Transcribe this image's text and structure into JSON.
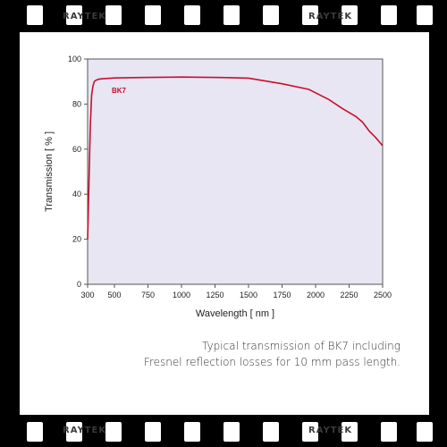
{
  "watermark": {
    "top_left": "RAYTEK",
    "top_right": "RAYTEK",
    "bottom_left": "RAYTEK",
    "bottom_right": "RAYTEK"
  },
  "caption": {
    "line1": "Typical transmission of BK7 including",
    "line2": "Fresnel reflection losses for 10 mm pass length."
  },
  "colors": {
    "plot_background": "#e8e6f2",
    "series": "#c8102e"
  },
  "chart_data": {
    "type": "line",
    "xlabel": "Wavelength [ nm ]",
    "ylabel": "Transmission [ % ]",
    "xlim": [
      300,
      2500
    ],
    "ylim": [
      0,
      100
    ],
    "xticks": [
      300,
      500,
      750,
      1000,
      1250,
      1500,
      1750,
      2000,
      2250,
      2500
    ],
    "yticks": [
      0,
      20,
      40,
      60,
      80,
      100
    ],
    "grid": false,
    "series": [
      {
        "name": "BK7",
        "x": [
          300,
          310,
          320,
          330,
          340,
          350,
          360,
          380,
          400,
          500,
          700,
          1000,
          1300,
          1500,
          1750,
          1950,
          2000,
          2100,
          2200,
          2300,
          2350,
          2400,
          2450,
          2500
        ],
        "y": [
          20,
          45,
          70,
          84,
          88,
          90,
          90.5,
          91,
          91.2,
          91.6,
          91.8,
          92,
          91.8,
          91.5,
          89,
          86.5,
          85,
          82,
          78,
          74.5,
          72,
          68,
          65,
          61.5
        ]
      }
    ]
  }
}
